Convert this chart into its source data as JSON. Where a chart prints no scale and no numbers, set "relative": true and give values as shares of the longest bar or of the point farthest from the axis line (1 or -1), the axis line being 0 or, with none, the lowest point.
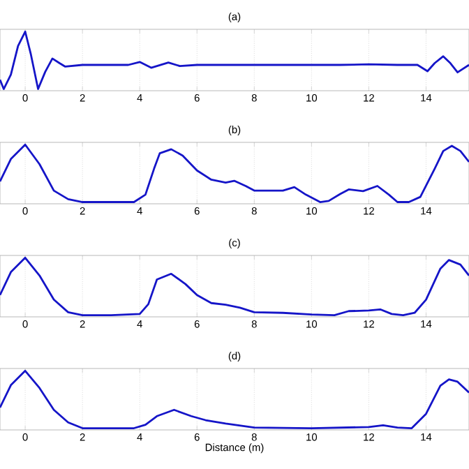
{
  "chart_data": [
    {
      "type": "line",
      "title": "(a)",
      "relative": true,
      "tick_labels": "x",
      "grid": "x",
      "xlim": [
        -0.88,
        15.5
      ],
      "xticks": [
        0,
        2,
        4,
        6,
        8,
        10,
        12,
        14
      ],
      "series": [
        {
          "color": "#1515c8",
          "x": [
            -0.88,
            -0.75,
            -0.5,
            -0.25,
            0,
            0.2,
            0.45,
            0.7,
            0.95,
            1.2,
            1.4,
            2,
            3,
            3.6,
            4,
            4.4,
            5,
            5.4,
            6,
            7,
            8,
            9,
            10,
            11,
            12,
            13,
            13.7,
            14.05,
            14.3,
            14.6,
            14.85,
            15.1,
            15.5
          ],
          "values": [
            0.16,
            0.0,
            0.25,
            0.75,
            1,
            0.6,
            0.0,
            0.3,
            0.53,
            0.45,
            0.39,
            0.42,
            0.42,
            0.42,
            0.47,
            0.37,
            0.46,
            0.4,
            0.42,
            0.42,
            0.42,
            0.42,
            0.42,
            0.42,
            0.43,
            0.42,
            0.42,
            0.31,
            0.45,
            0.57,
            0.45,
            0.29,
            0.42
          ]
        }
      ]
    },
    {
      "type": "line",
      "title": "(b)",
      "relative": true,
      "tick_labels": "x",
      "grid": "x",
      "xlim": [
        -0.88,
        15.5
      ],
      "xticks": [
        0,
        2,
        4,
        6,
        8,
        10,
        12,
        14
      ],
      "series": [
        {
          "color": "#1515c8",
          "x": [
            -0.88,
            -0.5,
            0,
            0.5,
            1,
            1.5,
            2,
            3,
            3.8,
            4.2,
            4.5,
            4.7,
            5.1,
            5.5,
            6,
            6.5,
            7,
            7.3,
            7.7,
            8,
            9,
            9.4,
            9.8,
            10.3,
            10.6,
            11,
            11.3,
            11.8,
            12.3,
            12.7,
            13,
            13.4,
            13.8,
            14.3,
            14.6,
            14.9,
            15.2,
            15.5
          ],
          "values": [
            0.36,
            0.75,
            1,
            0.66,
            0.2,
            0.05,
            0,
            0,
            0,
            0.13,
            0.58,
            0.85,
            0.92,
            0.81,
            0.55,
            0.39,
            0.34,
            0.37,
            0.28,
            0.2,
            0.2,
            0.26,
            0.13,
            0,
            0.02,
            0.14,
            0.22,
            0.19,
            0.28,
            0.13,
            0,
            0,
            0.09,
            0.58,
            0.89,
            0.98,
            0.89,
            0.7
          ]
        }
      ]
    },
    {
      "type": "line",
      "title": "(c)",
      "relative": true,
      "tick_labels": "x",
      "grid": "x",
      "xlim": [
        -0.88,
        15.5
      ],
      "xticks": [
        0,
        2,
        4,
        6,
        8,
        10,
        12,
        14
      ],
      "series": [
        {
          "color": "#1515c8",
          "x": [
            -0.88,
            -0.5,
            0,
            0.5,
            1,
            1.5,
            2,
            3,
            4,
            4.3,
            4.6,
            5.1,
            5.6,
            6,
            6.5,
            7,
            7.5,
            8,
            9,
            10,
            10.8,
            11.3,
            12,
            12.4,
            12.8,
            13.2,
            13.6,
            14,
            14.5,
            14.8,
            15.2,
            15.5
          ],
          "values": [
            0.35,
            0.75,
            1,
            0.69,
            0.27,
            0.05,
            0,
            0,
            0.02,
            0.19,
            0.62,
            0.72,
            0.54,
            0.35,
            0.21,
            0.18,
            0.13,
            0.05,
            0.04,
            0.01,
            0,
            0.07,
            0.08,
            0.1,
            0.02,
            0,
            0.04,
            0.27,
            0.81,
            0.96,
            0.88,
            0.69
          ]
        }
      ]
    },
    {
      "type": "line",
      "title": "(d)",
      "xlabel": "Distance (m)",
      "relative": true,
      "tick_labels": "x",
      "grid": "x",
      "xlim": [
        -0.88,
        15.5
      ],
      "xticks": [
        0,
        2,
        4,
        6,
        8,
        10,
        12,
        14
      ],
      "series": [
        {
          "color": "#1515c8",
          "x": [
            -0.88,
            -0.5,
            0,
            0.5,
            1,
            1.5,
            2,
            3,
            3.8,
            4.2,
            4.6,
            5.2,
            5.8,
            6.3,
            7,
            8,
            10,
            12,
            12.5,
            13,
            13.5,
            14,
            14.5,
            14.8,
            15.1,
            15.5
          ],
          "values": [
            0.36,
            0.75,
            1,
            0.7,
            0.32,
            0.1,
            0,
            0,
            0,
            0.06,
            0.21,
            0.32,
            0.21,
            0.14,
            0.08,
            0.01,
            0,
            0.02,
            0.05,
            0.01,
            0,
            0.25,
            0.74,
            0.85,
            0.81,
            0.62
          ]
        }
      ]
    }
  ]
}
